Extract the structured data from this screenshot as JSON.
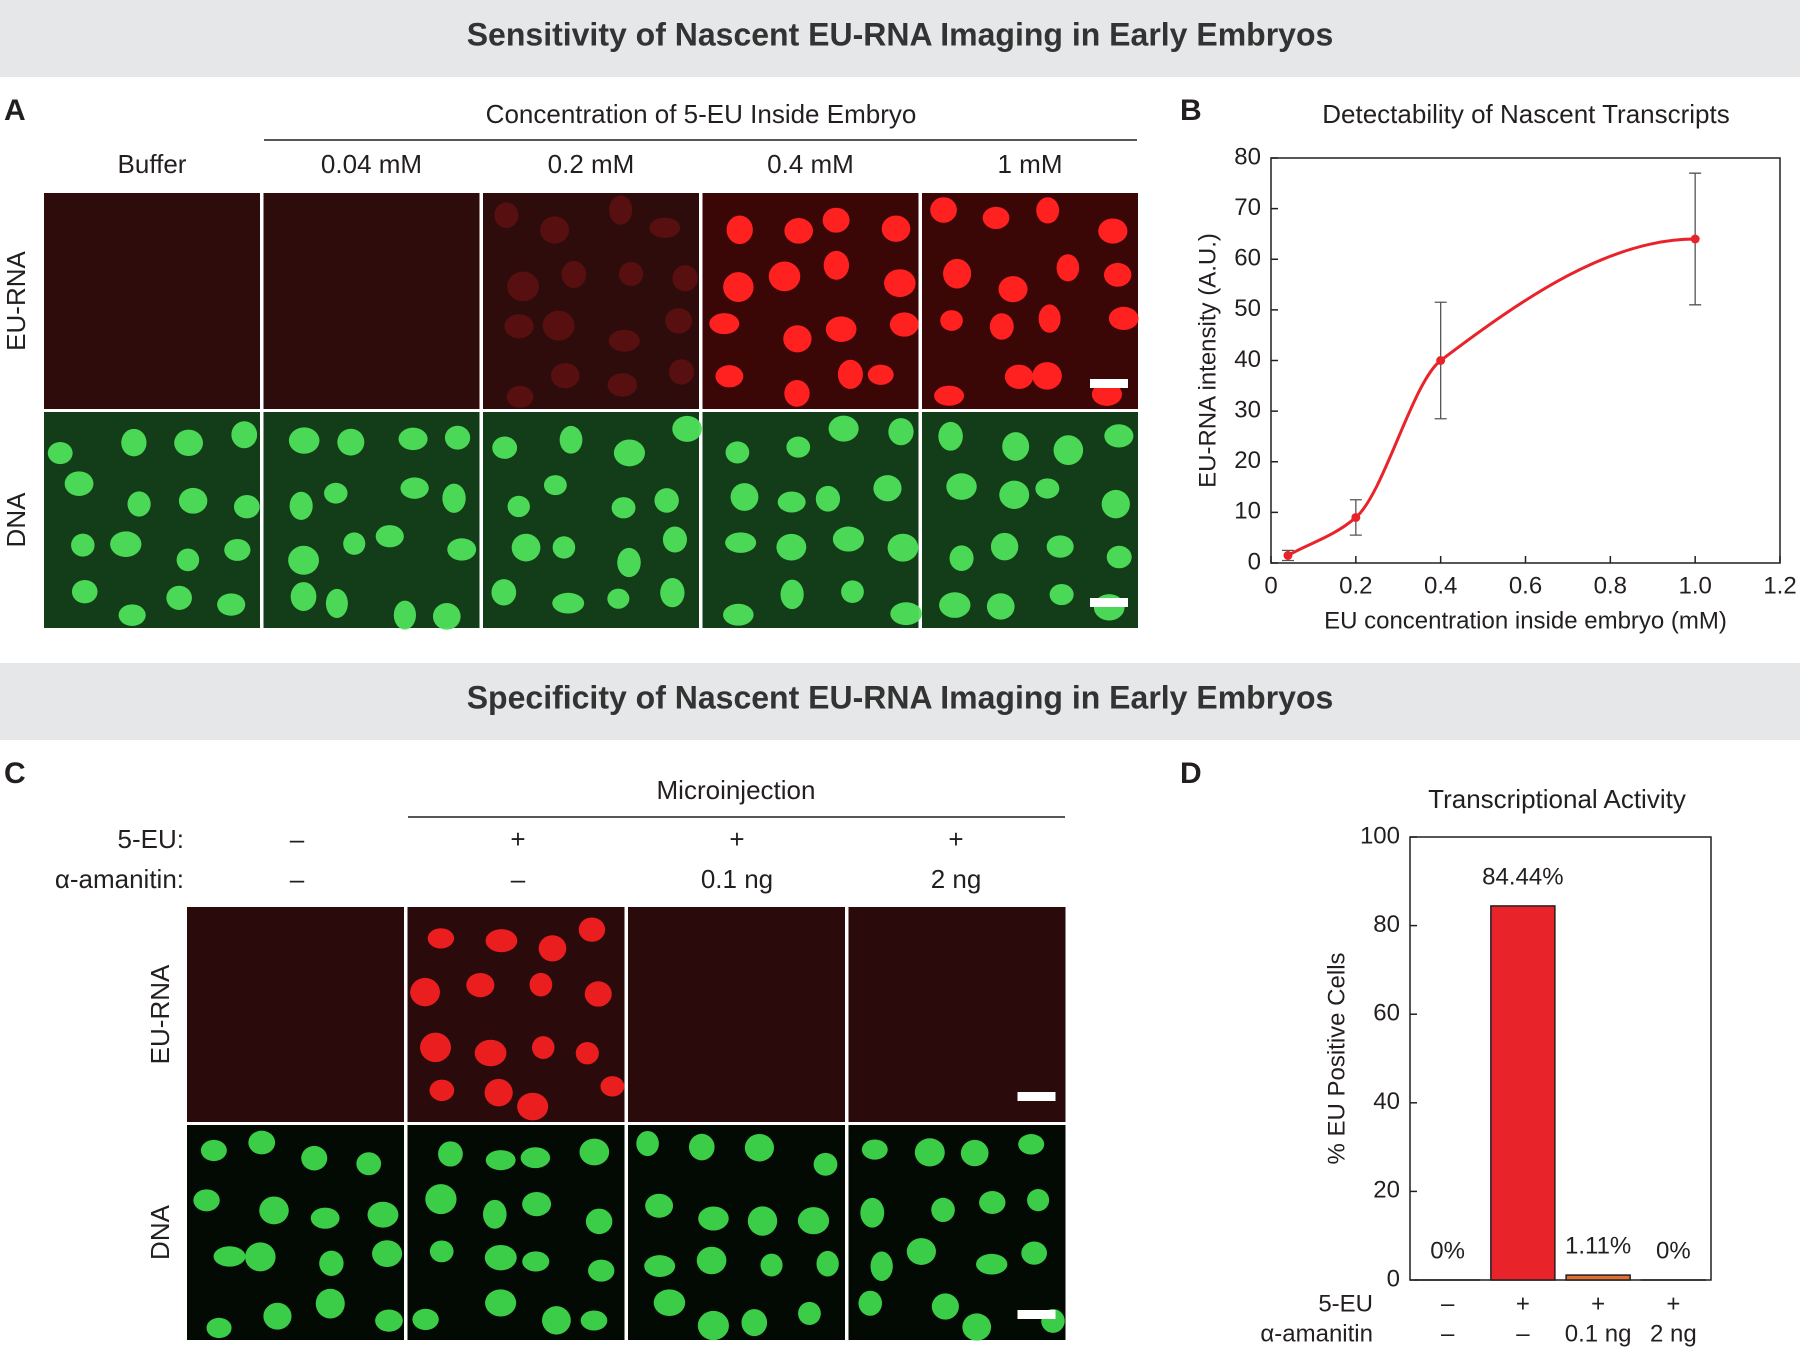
{
  "headers": [
    "Sensitivity of Nascent EU-RNA Imaging in Early Embryos",
    "Specificity of Nascent EU-RNA Imaging in Early Embryos"
  ],
  "panel_a": {
    "label": "A",
    "group_label": "Concentration of 5-EU Inside Embryo",
    "columns": [
      "Buffer",
      "0.04 mM",
      "0.2 mM",
      "0.4 mM",
      "1 mM"
    ],
    "rows": [
      "EU-RNA",
      "DNA"
    ]
  },
  "panel_c": {
    "label": "C",
    "group_label": "Microinjection",
    "conditions": [
      {
        "label": "5-EU:",
        "values": [
          "–",
          "+",
          "+",
          "+"
        ]
      },
      {
        "label": "α-amanitin:",
        "values": [
          "–",
          "–",
          "0.1 ng",
          "2 ng"
        ]
      }
    ],
    "rows": [
      "EU-RNA",
      "DNA"
    ]
  },
  "chart_data": [
    {
      "type": "line",
      "panel": "B",
      "title": "Detectability of Nascent Transcripts",
      "x_label": "EU concentration inside embryo (mM)",
      "y_label": "EU-RNA intensity (A.U.)",
      "x": [
        0.04,
        0.2,
        0.4,
        1.0
      ],
      "values": [
        1.5,
        9,
        40,
        64
      ],
      "errors": [
        1,
        3.5,
        11.5,
        13
      ],
      "color": "#e8242a",
      "xlim": [
        0,
        1.2
      ],
      "xticks": [
        0,
        0.2,
        0.4,
        0.6,
        0.8,
        {
          "value": 1,
          "label": "1.0"
        },
        1.2
      ],
      "ylim": [
        0,
        80
      ],
      "yticks": [
        0,
        10,
        20,
        30,
        40,
        50,
        60,
        70,
        80
      ]
    },
    {
      "type": "bar",
      "panel": "D",
      "title": "Transcriptional Activity",
      "y_label": "% EU Positive Cells",
      "category_rows": [
        {
          "label": "5-EU",
          "values": [
            "–",
            "+",
            "+",
            "+"
          ]
        },
        {
          "label": "α-amanitin",
          "values": [
            "–",
            "–",
            "0.1 ng",
            "2 ng"
          ]
        }
      ],
      "values": [
        0,
        84.44,
        1.11,
        0
      ],
      "value_labels": [
        "0%",
        "84.44%",
        "1.11%",
        "0%"
      ],
      "colors": [
        "#e8242a",
        "#e8242a",
        "#e07030",
        "#e8242a"
      ],
      "ylim": [
        0,
        100
      ],
      "yticks": [
        0,
        20,
        40,
        60,
        80,
        100
      ]
    }
  ]
}
